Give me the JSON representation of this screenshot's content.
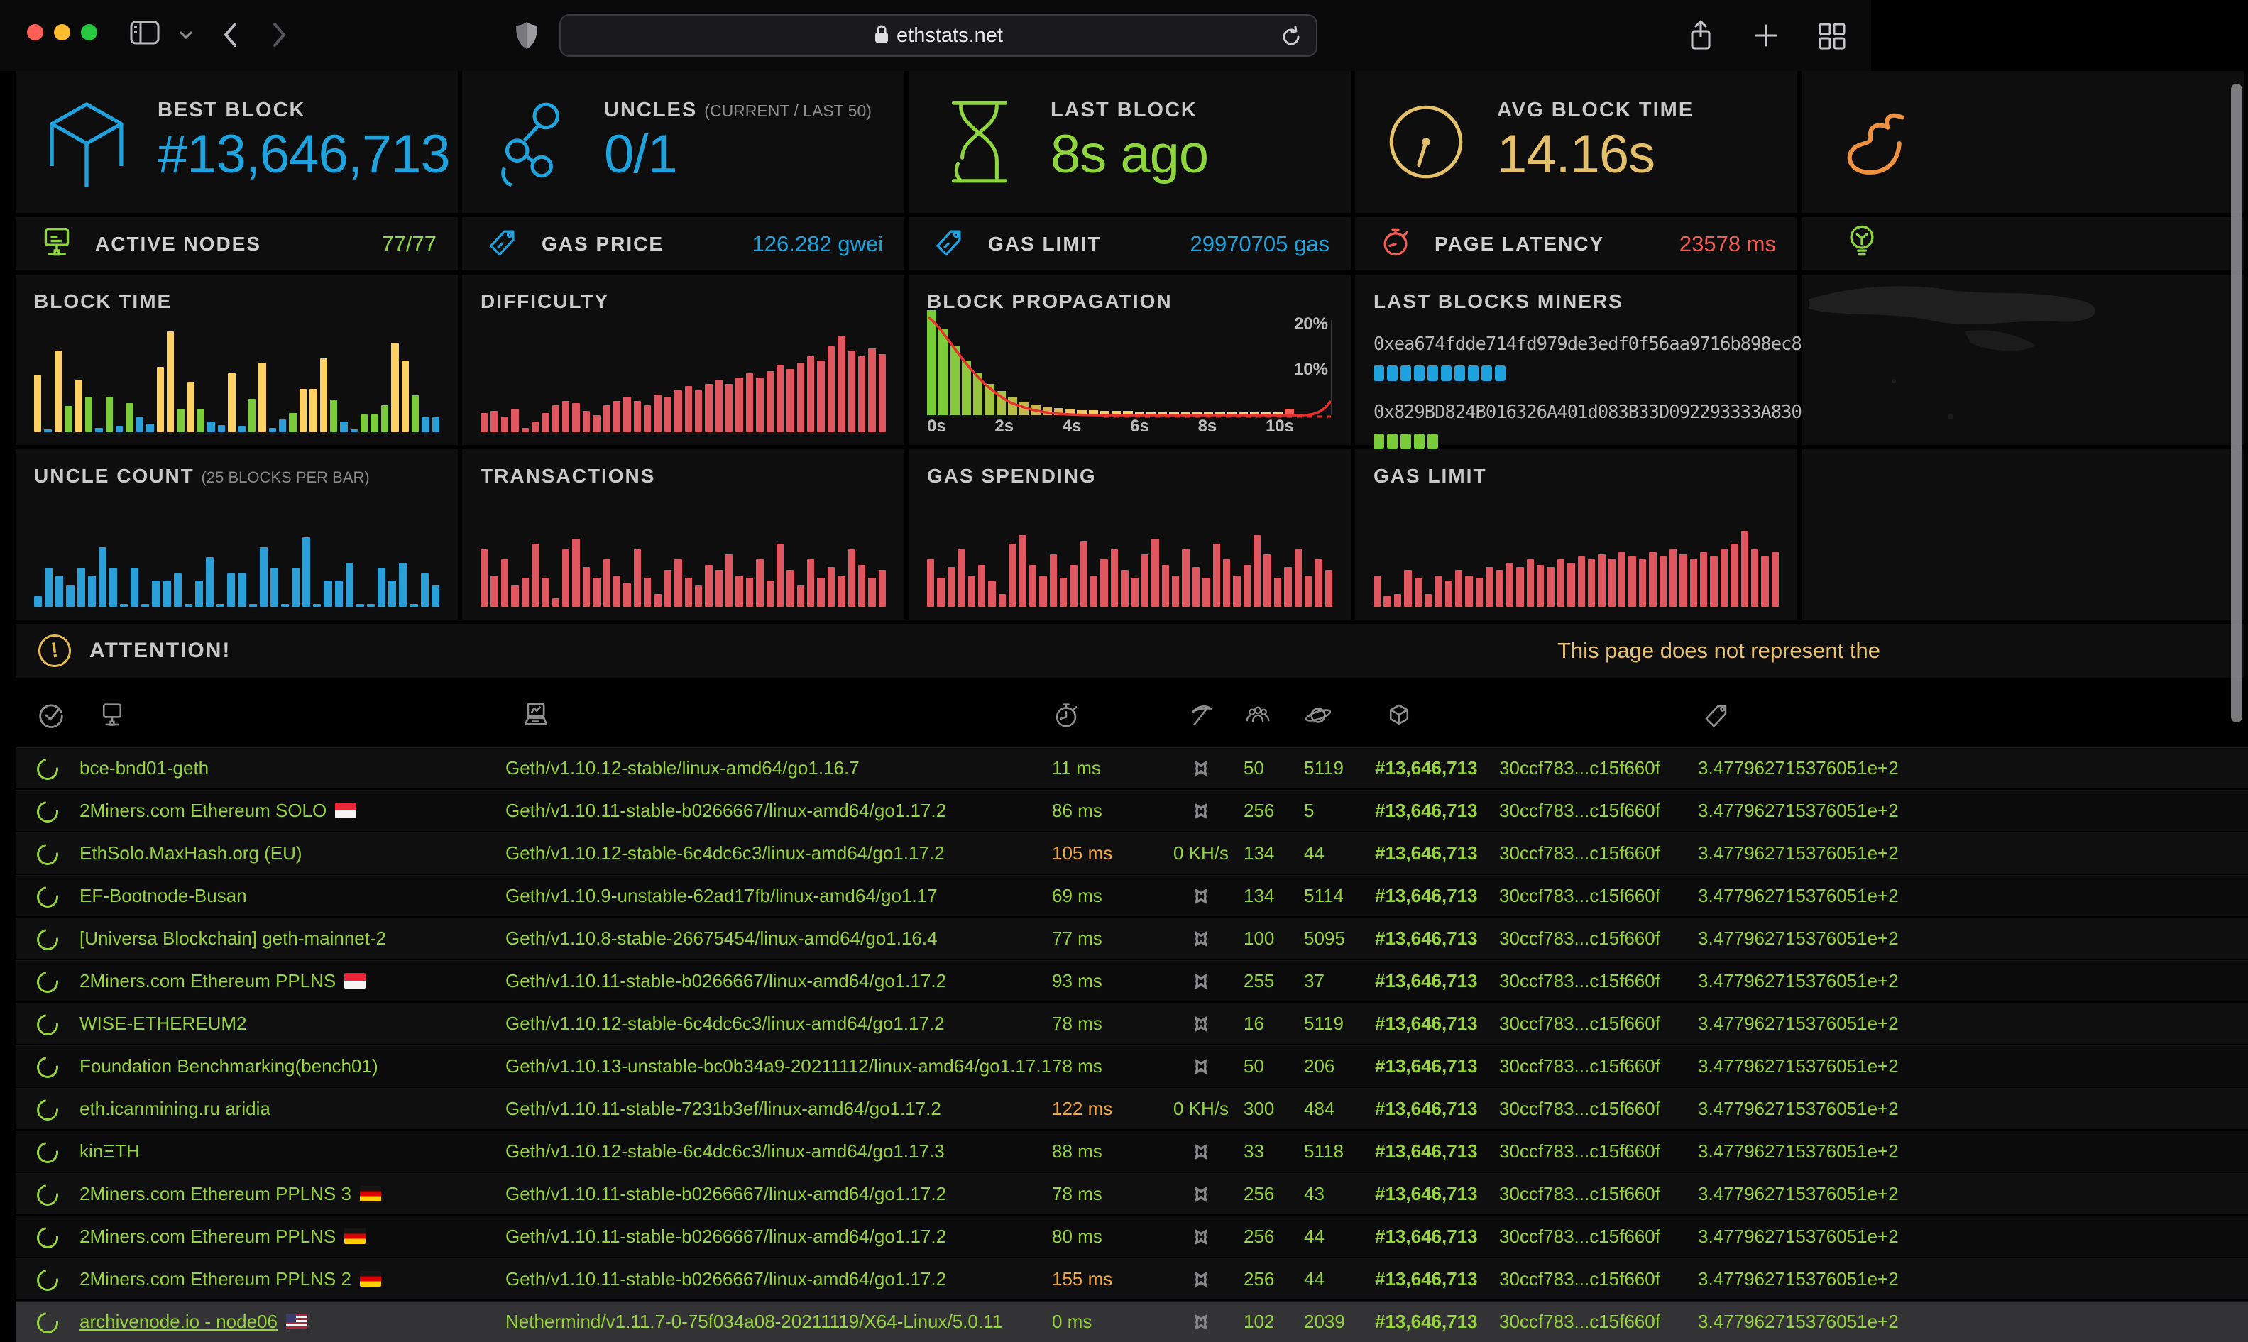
{
  "browser": {
    "url": "ethstats.net"
  },
  "stats_primary": [
    {
      "label": "BEST BLOCK",
      "value": "#13,646,713",
      "icon": "cube-icon",
      "color": "blue"
    },
    {
      "label": "UNCLES",
      "sublabel": "(CURRENT / LAST 50)",
      "value": "0/1",
      "icon": "uncles-icon",
      "color": "blue"
    },
    {
      "label": "LAST BLOCK",
      "value": "8s ago",
      "icon": "hourglass-icon",
      "color": "green"
    },
    {
      "label": "AVG BLOCK TIME",
      "value": "14.16s",
      "icon": "gauge-icon",
      "color": "gold"
    },
    {
      "label": "",
      "value": "",
      "icon": "flame-icon",
      "color": "orange"
    }
  ],
  "stats_secondary": [
    {
      "label": "ACTIVE NODES",
      "value": "77/77",
      "icon": "node-monitor-icon",
      "color": "green"
    },
    {
      "label": "GAS PRICE",
      "value": "126.282 gwei",
      "icon": "price-tag-icon",
      "color": "blue"
    },
    {
      "label": "GAS LIMIT",
      "value": "29970705 gas",
      "icon": "price-tag-icon",
      "color": "blue"
    },
    {
      "label": "PAGE LATENCY",
      "value": "23578 ms",
      "icon": "stopwatch-icon",
      "color": "red"
    },
    {
      "label": "",
      "value": "",
      "icon": "lightbulb-icon",
      "color": "green"
    }
  ],
  "miners": {
    "title": "LAST BLOCKS MINERS",
    "entries": [
      {
        "address": "0xea674fdde714fd979de3edf0f56aa9716b898ec8",
        "count": "10",
        "color": "#1ea3de"
      },
      {
        "address": "0x829BD824B016326A401d083B33D092293333A830",
        "count": "5",
        "color": "#7bcc3a"
      }
    ]
  },
  "attention": {
    "label": "ATTENTION!",
    "marquee": "This page does not represent the"
  },
  "chart_data": [
    {
      "id": "block_time",
      "type": "bar",
      "title": "BLOCK TIME",
      "palette": {
        "yellow": "#ffd162",
        "green": "#7bcc3a",
        "blue": "#2a9fd8"
      },
      "values": [
        0.55,
        0.03,
        0.78,
        0.25,
        0.5,
        0.34,
        0.04,
        0.34,
        0.06,
        0.28,
        0.15,
        0.08,
        0.62,
        0.96,
        0.22,
        0.48,
        0.22,
        0.1,
        0.07,
        0.56,
        0.06,
        0.32,
        0.66,
        0.04,
        0.12,
        0.18,
        0.41,
        0.41,
        0.7,
        0.31,
        0.1,
        0.03,
        0.17,
        0.17,
        0.26,
        0.85,
        0.68,
        0.35,
        0.14,
        0.14
      ],
      "colors": [
        "yellow",
        "blue",
        "yellow",
        "green",
        "yellow",
        "green",
        "blue",
        "green",
        "blue",
        "green",
        "blue",
        "blue",
        "yellow",
        "yellow",
        "green",
        "yellow",
        "green",
        "blue",
        "blue",
        "yellow",
        "blue",
        "green",
        "yellow",
        "blue",
        "blue",
        "green",
        "yellow",
        "yellow",
        "yellow",
        "green",
        "blue",
        "blue",
        "green",
        "green",
        "green",
        "yellow",
        "yellow",
        "green",
        "blue",
        "blue"
      ]
    },
    {
      "id": "difficulty",
      "type": "bar",
      "title": "DIFFICULTY",
      "color": "#e0575f",
      "values": [
        0.18,
        0.2,
        0.15,
        0.22,
        0.04,
        0.1,
        0.18,
        0.26,
        0.3,
        0.28,
        0.2,
        0.16,
        0.26,
        0.3,
        0.34,
        0.3,
        0.26,
        0.36,
        0.34,
        0.4,
        0.44,
        0.4,
        0.46,
        0.5,
        0.46,
        0.52,
        0.56,
        0.52,
        0.58,
        0.64,
        0.6,
        0.66,
        0.72,
        0.68,
        0.82,
        0.92,
        0.78,
        0.72,
        0.8,
        0.74
      ]
    },
    {
      "id": "block_propagation",
      "type": "histogram",
      "title": "BLOCK PROPAGATION",
      "x_ticks": [
        "0s",
        "2s",
        "4s",
        "6s",
        "8s",
        "10s"
      ],
      "y_ticks": [
        "20%",
        "10%"
      ],
      "values": [
        1.0,
        0.82,
        0.66,
        0.52,
        0.4,
        0.3,
        0.23,
        0.17,
        0.13,
        0.1,
        0.08,
        0.07,
        0.06,
        0.05,
        0.05,
        0.04,
        0.04,
        0.04,
        0.03,
        0.03,
        0.03,
        0.03,
        0.03,
        0.03,
        0.03,
        0.03,
        0.03,
        0.03,
        0.03,
        0.03,
        0.03,
        0.06
      ],
      "bar_colors": [
        "#76cc39",
        "#7ccb39",
        "#84ca3a",
        "#8dc83c",
        "#97c63e",
        "#a2c342",
        "#adc046",
        "#b8bd4a",
        "#c3ba4f",
        "#cdb754",
        "#d8b459",
        "#e0b75e",
        "#e8c062",
        "#eec765",
        "#f2cc67",
        "#f5d068",
        "#f7d269",
        "#f7d269",
        "#f7d269",
        "#f7d269",
        "#f7d269",
        "#f7d269",
        "#f7d269",
        "#f7d269",
        "#f7d269",
        "#f7d269",
        "#f7d269",
        "#f7d269",
        "#f7d269",
        "#f7d269",
        "#f7d269",
        "#f25c54"
      ]
    },
    {
      "id": "uncle_count",
      "type": "bar",
      "title": "UNCLE COUNT",
      "subtitle": "(25 BLOCKS PER BAR)",
      "color": "#2a9fd8",
      "values": [
        0.1,
        0.37,
        0.3,
        0.2,
        0.37,
        0.3,
        0.57,
        0.37,
        0.03,
        0.37,
        0.03,
        0.25,
        0.25,
        0.32,
        0.03,
        0.25,
        0.47,
        0.03,
        0.32,
        0.32,
        0.03,
        0.57,
        0.37,
        0.03,
        0.37,
        0.66,
        0.03,
        0.25,
        0.25,
        0.42,
        0.03,
        0.03,
        0.37,
        0.25,
        0.42,
        0.03,
        0.32,
        0.2
      ]
    },
    {
      "id": "transactions",
      "type": "bar",
      "title": "TRANSACTIONS",
      "color": "#e0575f",
      "values": [
        0.55,
        0.3,
        0.45,
        0.2,
        0.28,
        0.6,
        0.28,
        0.08,
        0.55,
        0.65,
        0.38,
        0.28,
        0.45,
        0.3,
        0.22,
        0.55,
        0.28,
        0.12,
        0.35,
        0.45,
        0.28,
        0.2,
        0.4,
        0.35,
        0.5,
        0.3,
        0.28,
        0.45,
        0.25,
        0.6,
        0.35,
        0.2,
        0.45,
        0.28,
        0.38,
        0.3,
        0.55,
        0.4,
        0.28,
        0.35
      ]
    },
    {
      "id": "gas_spending",
      "type": "bar",
      "title": "GAS SPENDING",
      "color": "#e0575f",
      "values": [
        0.45,
        0.28,
        0.38,
        0.55,
        0.3,
        0.4,
        0.25,
        0.12,
        0.6,
        0.68,
        0.4,
        0.3,
        0.5,
        0.28,
        0.4,
        0.62,
        0.3,
        0.45,
        0.55,
        0.35,
        0.28,
        0.5,
        0.65,
        0.4,
        0.3,
        0.55,
        0.38,
        0.28,
        0.6,
        0.45,
        0.3,
        0.4,
        0.68,
        0.5,
        0.28,
        0.38,
        0.55,
        0.3,
        0.45,
        0.35
      ]
    },
    {
      "id": "gas_limit",
      "type": "bar",
      "title": "GAS LIMIT",
      "color": "#e0575f",
      "values": [
        0.3,
        0.1,
        0.12,
        0.35,
        0.28,
        0.12,
        0.3,
        0.25,
        0.35,
        0.3,
        0.28,
        0.38,
        0.35,
        0.42,
        0.38,
        0.45,
        0.4,
        0.38,
        0.45,
        0.42,
        0.48,
        0.45,
        0.5,
        0.46,
        0.52,
        0.48,
        0.45,
        0.52,
        0.48,
        0.55,
        0.5,
        0.46,
        0.52,
        0.48,
        0.55,
        0.6,
        0.72,
        0.55,
        0.48,
        0.52
      ]
    }
  ],
  "table": {
    "rows": [
      {
        "name": "bce-bnd01-geth",
        "flag": "",
        "version": "Geth/v1.10.12-stable/linux-amd64/go1.16.7",
        "latency": "11 ms",
        "latency_color": "green",
        "mining": "x",
        "peers": "50",
        "pending": "5119",
        "block": "#13,646,713",
        "hash": "30ccf783...c15f660f",
        "difficulty": "3.477962715376051e+2",
        "highlight": false
      },
      {
        "name": "2Miners.com Ethereum SOLO",
        "flag": "sg",
        "version": "Geth/v1.10.11-stable-b0266667/linux-amd64/go1.17.2",
        "latency": "86 ms",
        "latency_color": "green",
        "mining": "x",
        "peers": "256",
        "pending": "5",
        "block": "#13,646,713",
        "hash": "30ccf783...c15f660f",
        "difficulty": "3.477962715376051e+2",
        "highlight": false
      },
      {
        "name": "EthSolo.MaxHash.org (EU)",
        "flag": "",
        "version": "Geth/v1.10.12-stable-6c4dc6c3/linux-amd64/go1.17.2",
        "latency": "105 ms",
        "latency_color": "orange",
        "mining": "0 KH/s",
        "peers": "134",
        "pending": "44",
        "block": "#13,646,713",
        "hash": "30ccf783...c15f660f",
        "difficulty": "3.477962715376051e+2",
        "highlight": false
      },
      {
        "name": "EF-Bootnode-Busan",
        "flag": "",
        "version": "Geth/v1.10.9-unstable-62ad17fb/linux-amd64/go1.17",
        "latency": "69 ms",
        "latency_color": "green",
        "mining": "x",
        "peers": "134",
        "pending": "5114",
        "block": "#13,646,713",
        "hash": "30ccf783...c15f660f",
        "difficulty": "3.477962715376051e+2",
        "highlight": false
      },
      {
        "name": "[Universa Blockchain] geth-mainnet-2",
        "flag": "",
        "version": "Geth/v1.10.8-stable-26675454/linux-amd64/go1.16.4",
        "latency": "77 ms",
        "latency_color": "green",
        "mining": "x",
        "peers": "100",
        "pending": "5095",
        "block": "#13,646,713",
        "hash": "30ccf783...c15f660f",
        "difficulty": "3.477962715376051e+2",
        "highlight": false
      },
      {
        "name": "2Miners.com Ethereum PPLNS",
        "flag": "sg",
        "version": "Geth/v1.10.11-stable-b0266667/linux-amd64/go1.17.2",
        "latency": "93 ms",
        "latency_color": "green",
        "mining": "x",
        "peers": "255",
        "pending": "37",
        "block": "#13,646,713",
        "hash": "30ccf783...c15f660f",
        "difficulty": "3.477962715376051e+2",
        "highlight": false
      },
      {
        "name": "WISE-ETHEREUM2",
        "flag": "",
        "version": "Geth/v1.10.12-stable-6c4dc6c3/linux-amd64/go1.17.2",
        "latency": "78 ms",
        "latency_color": "green",
        "mining": "x",
        "peers": "16",
        "pending": "5119",
        "block": "#13,646,713",
        "hash": "30ccf783...c15f660f",
        "difficulty": "3.477962715376051e+2",
        "highlight": false
      },
      {
        "name": "Foundation Benchmarking(bench01)",
        "flag": "",
        "version": "Geth/v1.10.13-unstable-bc0b34a9-20211112/linux-amd64/go1.17.1",
        "latency": "78 ms",
        "latency_color": "green",
        "mining": "x",
        "peers": "50",
        "pending": "206",
        "block": "#13,646,713",
        "hash": "30ccf783...c15f660f",
        "difficulty": "3.477962715376051e+2",
        "highlight": false
      },
      {
        "name": "eth.icanmining.ru aridia",
        "flag": "",
        "version": "Geth/v1.10.11-stable-7231b3ef/linux-amd64/go1.17.2",
        "latency": "122 ms",
        "latency_color": "orange",
        "mining": "0 KH/s",
        "peers": "300",
        "pending": "484",
        "block": "#13,646,713",
        "hash": "30ccf783...c15f660f",
        "difficulty": "3.477962715376051e+2",
        "highlight": false
      },
      {
        "name": "kinΞTH",
        "flag": "",
        "version": "Geth/v1.10.12-stable-6c4dc6c3/linux-amd64/go1.17.3",
        "latency": "88 ms",
        "latency_color": "green",
        "mining": "x",
        "peers": "33",
        "pending": "5118",
        "block": "#13,646,713",
        "hash": "30ccf783...c15f660f",
        "difficulty": "3.477962715376051e+2",
        "highlight": false
      },
      {
        "name": "2Miners.com Ethereum PPLNS 3",
        "flag": "de",
        "version": "Geth/v1.10.11-stable-b0266667/linux-amd64/go1.17.2",
        "latency": "78 ms",
        "latency_color": "green",
        "mining": "x",
        "peers": "256",
        "pending": "43",
        "block": "#13,646,713",
        "hash": "30ccf783...c15f660f",
        "difficulty": "3.477962715376051e+2",
        "highlight": false
      },
      {
        "name": "2Miners.com Ethereum PPLNS",
        "flag": "de",
        "version": "Geth/v1.10.11-stable-b0266667/linux-amd64/go1.17.2",
        "latency": "80 ms",
        "latency_color": "green",
        "mining": "x",
        "peers": "256",
        "pending": "44",
        "block": "#13,646,713",
        "hash": "30ccf783...c15f660f",
        "difficulty": "3.477962715376051e+2",
        "highlight": false
      },
      {
        "name": "2Miners.com Ethereum PPLNS 2",
        "flag": "de",
        "version": "Geth/v1.10.11-stable-b0266667/linux-amd64/go1.17.2",
        "latency": "155 ms",
        "latency_color": "orange",
        "mining": "x",
        "peers": "256",
        "pending": "44",
        "block": "#13,646,713",
        "hash": "30ccf783...c15f660f",
        "difficulty": "3.477962715376051e+2",
        "highlight": false
      },
      {
        "name": "archivenode.io - node06",
        "flag": "us",
        "version": "Nethermind/v1.11.7-0-75f034a08-20211119/X64-Linux/5.0.11",
        "latency": "0 ms",
        "latency_color": "green",
        "mining": "x",
        "peers": "102",
        "pending": "2039",
        "block": "#13,646,713",
        "hash": "30ccf783...c15f660f",
        "difficulty": "3.477962715376051e+2",
        "highlight": true
      }
    ]
  }
}
